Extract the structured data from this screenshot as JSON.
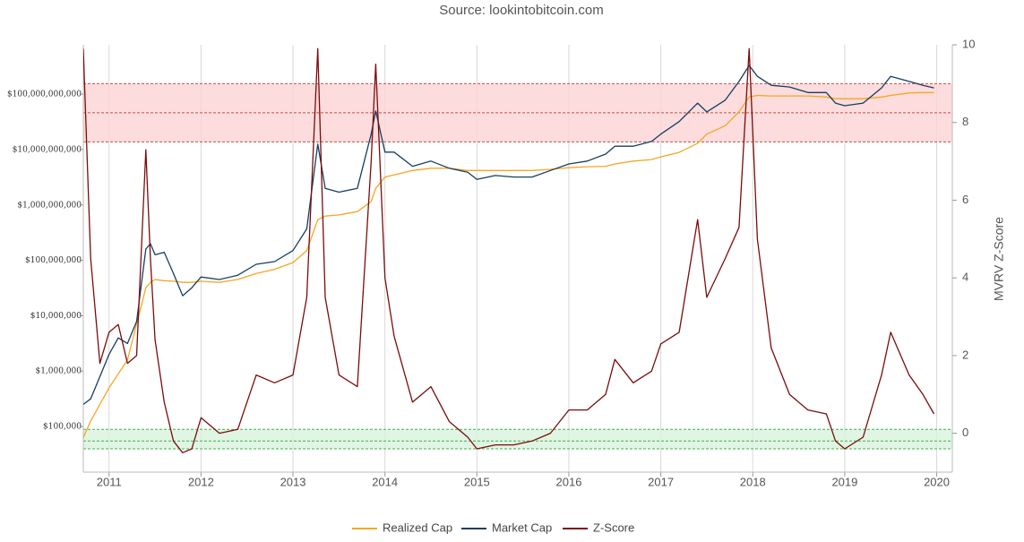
{
  "chart_data": {
    "type": "line",
    "title": "Source: lookintobitcoin.com",
    "y2_label": "MVRV Z-Score",
    "x": [
      2010.72,
      2010.8,
      2010.9,
      2011.0,
      2011.1,
      2011.2,
      2011.3,
      2011.4,
      2011.45,
      2011.5,
      2011.6,
      2011.7,
      2011.8,
      2011.9,
      2012.0,
      2012.2,
      2012.4,
      2012.6,
      2012.8,
      2013.0,
      2013.15,
      2013.27,
      2013.35,
      2013.5,
      2013.7,
      2013.85,
      2013.9,
      2014.0,
      2014.1,
      2014.3,
      2014.5,
      2014.7,
      2014.9,
      2015.0,
      2015.2,
      2015.4,
      2015.6,
      2015.8,
      2016.0,
      2016.2,
      2016.4,
      2016.5,
      2016.7,
      2016.9,
      2017.0,
      2017.2,
      2017.4,
      2017.5,
      2017.7,
      2017.85,
      2017.96,
      2018.05,
      2018.2,
      2018.4,
      2018.6,
      2018.8,
      2018.9,
      2019.0,
      2019.2,
      2019.4,
      2019.5,
      2019.7,
      2019.85,
      2019.97
    ],
    "series": [
      {
        "name": "Realized Cap",
        "color": "#f5a623",
        "axis": "y",
        "values": [
          63000,
          126000,
          251000,
          500000,
          890000,
          1600000,
          7100000,
          32000000,
          40000000,
          45000000,
          43000000,
          42000000,
          40000000,
          40000000,
          42000000,
          40000000,
          45000000,
          58000000,
          69000000,
          91000000,
          150000000,
          540000000,
          630000000,
          660000000,
          760000000,
          1150000000,
          2000000000,
          3200000000,
          3500000000,
          4200000000,
          4600000000,
          4600000000,
          4200000000,
          4200000000,
          4200000000,
          4200000000,
          4200000000,
          4400000000,
          4700000000,
          4900000000,
          5000000000,
          5500000000,
          6200000000,
          6600000000,
          7400000000,
          8900000000,
          13000000000,
          19000000000,
          27000000000,
          48000000000,
          89000000000,
          95000000000,
          93000000000,
          93000000000,
          93000000000,
          89000000000,
          83000000000,
          83000000000,
          83000000000,
          89000000000,
          95000000000,
          105000000000,
          107000000000,
          107000000000
        ]
      },
      {
        "name": "Market Cap",
        "color": "#163e63",
        "axis": "y",
        "values": [
          251000,
          316000,
          794000,
          2000000,
          3980000,
          3160000,
          7900000,
          160000000,
          200000000,
          126000000,
          140000000,
          58000000,
          23000000,
          32000000,
          50000000,
          45000000,
          54000000,
          85000000,
          95000000,
          150000000,
          370000000,
          12600000000,
          2000000000,
          1700000000,
          2000000000,
          19000000000,
          50000000000,
          9000000000,
          9000000000,
          5000000000,
          6200000000,
          4600000000,
          3900000000,
          2900000000,
          3400000000,
          3200000000,
          3200000000,
          4200000000,
          5500000000,
          6200000000,
          8300000000,
          11500000000,
          11500000000,
          14000000000,
          19000000000,
          32000000000,
          69000000000,
          48000000000,
          78000000000,
          170000000000,
          330000000000,
          210000000000,
          145000000000,
          135000000000,
          107000000000,
          107000000000,
          69000000000,
          62000000000,
          69000000000,
          130000000000,
          210000000000,
          170000000000,
          145000000000,
          130000000000
        ]
      },
      {
        "name": "Z-Score",
        "color": "#7a0c0c",
        "axis": "y2",
        "values": [
          9.9,
          4.5,
          1.8,
          2.6,
          2.8,
          1.8,
          2.0,
          7.3,
          4.5,
          2.4,
          0.8,
          -0.2,
          -0.5,
          -0.4,
          0.4,
          0.0,
          0.1,
          1.5,
          1.3,
          1.5,
          3.5,
          9.9,
          3.5,
          1.5,
          1.2,
          7.0,
          9.5,
          4.0,
          2.5,
          0.8,
          1.2,
          0.3,
          -0.1,
          -0.4,
          -0.3,
          -0.3,
          -0.2,
          0.0,
          0.6,
          0.6,
          1.0,
          1.9,
          1.3,
          1.6,
          2.3,
          2.6,
          5.5,
          3.5,
          4.5,
          5.3,
          9.9,
          5.0,
          2.2,
          1.0,
          0.6,
          0.5,
          -0.2,
          -0.4,
          -0.1,
          1.5,
          2.6,
          1.5,
          1.0,
          0.5
        ]
      }
    ],
    "xlim": [
      2010.72,
      2020.17
    ],
    "xticks": [
      2011,
      2012,
      2013,
      2014,
      2015,
      2016,
      2017,
      2018,
      2019,
      2020
    ],
    "ylim": [
      15000,
      780000000000
    ],
    "ylog": true,
    "yticks": [
      {
        "value": 100000,
        "label": "$100,000"
      },
      {
        "value": 1000000,
        "label": "$1,000,000"
      },
      {
        "value": 10000000,
        "label": "$10,000,000"
      },
      {
        "value": 100000000,
        "label": "$100,000,000"
      },
      {
        "value": 1000000000,
        "label": "$1,000,000,000"
      },
      {
        "value": 10000000000,
        "label": "$10,000,000,000"
      },
      {
        "value": 100000000000,
        "label": "$100,000,000,000"
      }
    ],
    "y2lim": [
      -1,
      10
    ],
    "y2ticks": [
      0,
      2,
      4,
      6,
      8,
      10
    ],
    "x_grid": true,
    "bands": [
      {
        "axis": "y2",
        "lines": [
          7.5,
          8.25,
          9.0
        ],
        "color": "#fbd3d3",
        "line_color": "#c0504d"
      },
      {
        "axis": "y2",
        "lines": [
          -0.4,
          -0.2,
          0.1
        ],
        "color": "#d8f2dc",
        "line_color": "#3cb44b"
      }
    ],
    "legend": "bottom"
  }
}
